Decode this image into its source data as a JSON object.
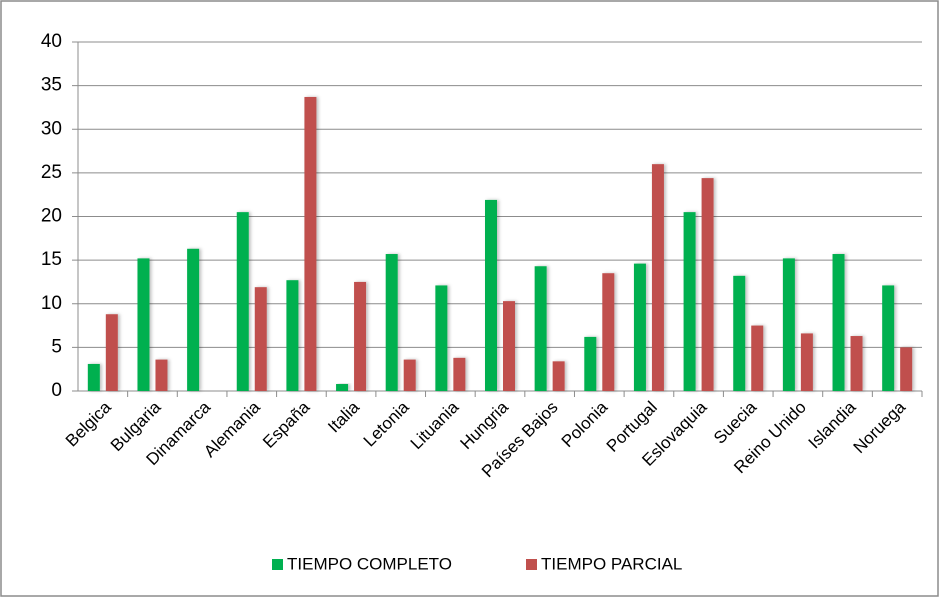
{
  "chart_data": {
    "type": "bar",
    "categories": [
      "Belgica",
      "Bulgaria",
      "Dinamarca",
      "Alemania",
      "España",
      "Italia",
      "Letonia",
      "Lituania",
      "Hungria",
      "Países Bajos",
      "Polonia",
      "Portugal",
      "Eslovaquia",
      "Suecia",
      "Reino Unido",
      "Islandia",
      "Noruega"
    ],
    "series": [
      {
        "name": "TIEMPO COMPLETO",
        "color": "#00b050",
        "values": [
          3.1,
          15.2,
          16.3,
          20.5,
          12.7,
          0.8,
          15.7,
          12.1,
          21.9,
          14.3,
          6.2,
          14.6,
          20.5,
          13.2,
          15.2,
          15.7,
          12.1
        ]
      },
      {
        "name": "TIEMPO PARCIAL",
        "color": "#c0504d",
        "values": [
          8.8,
          3.6,
          0,
          11.9,
          33.7,
          12.5,
          3.6,
          3.8,
          10.3,
          3.4,
          13.5,
          26.0,
          24.4,
          7.5,
          6.6,
          6.3,
          5.0
        ]
      }
    ],
    "ylim": [
      0,
      40
    ],
    "yticks": [
      0,
      5,
      10,
      15,
      20,
      25,
      30,
      35,
      40
    ],
    "grid": true,
    "legend": "bottom"
  }
}
